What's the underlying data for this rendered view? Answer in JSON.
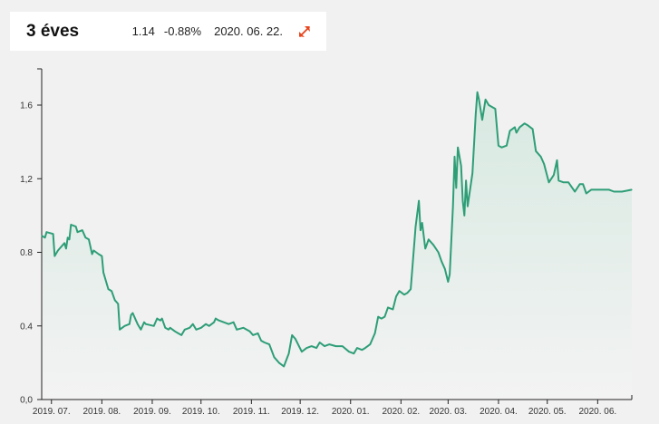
{
  "header": {
    "title": "3 éves",
    "value": "1.14",
    "change": "-0.88%",
    "date": "2020. 06. 22."
  },
  "colors": {
    "line": "#2e9e77",
    "area_top": "#d7e9e1",
    "area_bottom": "#f3f3f3",
    "icon": "#e8451e"
  },
  "icons": {
    "expand": "expand-arrows-icon"
  },
  "chart_data": {
    "type": "area",
    "title": "",
    "xlabel": "",
    "ylabel": "",
    "ylim": [
      0,
      1.6
    ],
    "yticks": [
      0.0,
      0.4,
      0.8,
      1.2,
      1.6
    ],
    "ytick_labels": [
      "0,0",
      "0.4",
      "0.8",
      "1,2",
      "1.6"
    ],
    "xlim": [
      "2019-06-25",
      "2020-06-22"
    ],
    "xticks": [
      "2019-07-01",
      "2019-08-01",
      "2019-09-01",
      "2019-10-01",
      "2019-11-01",
      "2019-12-01",
      "2020-01-01",
      "2020-02-01",
      "2020-03-01",
      "2020-04-01",
      "2020-05-01",
      "2020-06-01"
    ],
    "xtick_labels": [
      "2019. 07.",
      "2019. 08.",
      "2019. 09.",
      "2019. 10.",
      "2019. 11.",
      "2019. 12.",
      "2020. 01.",
      "2020. 02.",
      "2020. 03.",
      "2020. 04.",
      "2020. 05.",
      "2020. 06."
    ],
    "series": [
      {
        "points": [
          [
            "2019-06-25",
            0.89
          ],
          [
            "2019-06-27",
            0.88
          ],
          [
            "2019-06-28",
            0.91
          ],
          [
            "2019-07-02",
            0.9
          ],
          [
            "2019-07-03",
            0.78
          ],
          [
            "2019-07-05",
            0.81
          ],
          [
            "2019-07-09",
            0.85
          ],
          [
            "2019-07-10",
            0.82
          ],
          [
            "2019-07-11",
            0.88
          ],
          [
            "2019-07-12",
            0.87
          ],
          [
            "2019-07-13",
            0.95
          ],
          [
            "2019-07-16",
            0.94
          ],
          [
            "2019-07-17",
            0.91
          ],
          [
            "2019-07-20",
            0.92
          ],
          [
            "2019-07-22",
            0.88
          ],
          [
            "2019-07-24",
            0.87
          ],
          [
            "2019-07-26",
            0.79
          ],
          [
            "2019-07-27",
            0.81
          ],
          [
            "2019-07-30",
            0.79
          ],
          [
            "2019-08-01",
            0.78
          ],
          [
            "2019-08-02",
            0.69
          ],
          [
            "2019-08-05",
            0.6
          ],
          [
            "2019-08-07",
            0.59
          ],
          [
            "2019-08-09",
            0.54
          ],
          [
            "2019-08-11",
            0.52
          ],
          [
            "2019-08-12",
            0.38
          ],
          [
            "2019-08-15",
            0.4
          ],
          [
            "2019-08-18",
            0.41
          ],
          [
            "2019-08-19",
            0.46
          ],
          [
            "2019-08-20",
            0.47
          ],
          [
            "2019-08-22",
            0.43
          ],
          [
            "2019-08-23",
            0.41
          ],
          [
            "2019-08-25",
            0.38
          ],
          [
            "2019-08-27",
            0.42
          ],
          [
            "2019-08-28",
            0.41
          ],
          [
            "2019-09-02",
            0.4
          ],
          [
            "2019-09-04",
            0.44
          ],
          [
            "2019-09-06",
            0.43
          ],
          [
            "2019-09-07",
            0.44
          ],
          [
            "2019-09-09",
            0.39
          ],
          [
            "2019-09-11",
            0.38
          ],
          [
            "2019-09-12",
            0.39
          ],
          [
            "2019-09-15",
            0.37
          ],
          [
            "2019-09-17",
            0.36
          ],
          [
            "2019-09-19",
            0.35
          ],
          [
            "2019-09-21",
            0.38
          ],
          [
            "2019-09-24",
            0.39
          ],
          [
            "2019-09-26",
            0.41
          ],
          [
            "2019-09-28",
            0.38
          ],
          [
            "2019-10-01",
            0.39
          ],
          [
            "2019-10-04",
            0.41
          ],
          [
            "2019-10-06",
            0.4
          ],
          [
            "2019-10-09",
            0.42
          ],
          [
            "2019-10-10",
            0.44
          ],
          [
            "2019-10-12",
            0.43
          ],
          [
            "2019-10-15",
            0.42
          ],
          [
            "2019-10-18",
            0.41
          ],
          [
            "2019-10-21",
            0.42
          ],
          [
            "2019-10-23",
            0.38
          ],
          [
            "2019-10-27",
            0.39
          ],
          [
            "2019-10-29",
            0.38
          ],
          [
            "2019-10-31",
            0.37
          ],
          [
            "2019-11-02",
            0.35
          ],
          [
            "2019-11-05",
            0.36
          ],
          [
            "2019-11-07",
            0.32
          ],
          [
            "2019-11-09",
            0.31
          ],
          [
            "2019-11-12",
            0.3
          ],
          [
            "2019-11-15",
            0.23
          ],
          [
            "2019-11-18",
            0.2
          ],
          [
            "2019-11-21",
            0.18
          ],
          [
            "2019-11-24",
            0.25
          ],
          [
            "2019-11-26",
            0.35
          ],
          [
            "2019-11-28",
            0.33
          ],
          [
            "2019-12-02",
            0.26
          ],
          [
            "2019-12-05",
            0.28
          ],
          [
            "2019-12-08",
            0.29
          ],
          [
            "2019-12-11",
            0.28
          ],
          [
            "2019-12-13",
            0.31
          ],
          [
            "2019-12-16",
            0.29
          ],
          [
            "2019-12-19",
            0.3
          ],
          [
            "2019-12-23",
            0.29
          ],
          [
            "2019-12-27",
            0.29
          ],
          [
            "2019-12-31",
            0.26
          ],
          [
            "2020-01-03",
            0.25
          ],
          [
            "2020-01-05",
            0.28
          ],
          [
            "2020-01-08",
            0.27
          ],
          [
            "2020-01-10",
            0.28
          ],
          [
            "2020-01-13",
            0.3
          ],
          [
            "2020-01-16",
            0.36
          ],
          [
            "2020-01-18",
            0.45
          ],
          [
            "2020-01-20",
            0.44
          ],
          [
            "2020-01-22",
            0.45
          ],
          [
            "2020-01-24",
            0.5
          ],
          [
            "2020-01-27",
            0.49
          ],
          [
            "2020-01-29",
            0.56
          ],
          [
            "2020-01-31",
            0.59
          ],
          [
            "2020-02-03",
            0.57
          ],
          [
            "2020-02-05",
            0.58
          ],
          [
            "2020-02-07",
            0.6
          ],
          [
            "2020-02-10",
            0.94
          ],
          [
            "2020-02-12",
            1.08
          ],
          [
            "2020-02-13",
            0.92
          ],
          [
            "2020-02-14",
            0.96
          ],
          [
            "2020-02-16",
            0.82
          ],
          [
            "2020-02-18",
            0.87
          ],
          [
            "2020-02-21",
            0.84
          ],
          [
            "2020-02-24",
            0.8
          ],
          [
            "2020-02-26",
            0.75
          ],
          [
            "2020-02-28",
            0.71
          ],
          [
            "2020-03-01",
            0.64
          ],
          [
            "2020-03-02",
            0.68
          ],
          [
            "2020-03-04",
            1.05
          ],
          [
            "2020-03-05",
            1.32
          ],
          [
            "2020-03-06",
            1.15
          ],
          [
            "2020-03-07",
            1.37
          ],
          [
            "2020-03-09",
            1.27
          ],
          [
            "2020-03-10",
            1.08
          ],
          [
            "2020-03-11",
            1.0
          ],
          [
            "2020-03-12",
            1.19
          ],
          [
            "2020-03-13",
            1.05
          ],
          [
            "2020-03-16",
            1.23
          ],
          [
            "2020-03-18",
            1.55
          ],
          [
            "2020-03-19",
            1.67
          ],
          [
            "2020-03-20",
            1.63
          ],
          [
            "2020-03-22",
            1.52
          ],
          [
            "2020-03-24",
            1.63
          ],
          [
            "2020-03-26",
            1.6
          ],
          [
            "2020-03-30",
            1.58
          ],
          [
            "2020-04-01",
            1.38
          ],
          [
            "2020-04-03",
            1.37
          ],
          [
            "2020-04-06",
            1.38
          ],
          [
            "2020-04-08",
            1.46
          ],
          [
            "2020-04-11",
            1.48
          ],
          [
            "2020-04-12",
            1.45
          ],
          [
            "2020-04-14",
            1.48
          ],
          [
            "2020-04-17",
            1.5
          ],
          [
            "2020-04-19",
            1.49
          ],
          [
            "2020-04-22",
            1.47
          ],
          [
            "2020-04-24",
            1.35
          ],
          [
            "2020-04-27",
            1.32
          ],
          [
            "2020-04-29",
            1.28
          ],
          [
            "2020-05-02",
            1.18
          ],
          [
            "2020-05-05",
            1.22
          ],
          [
            "2020-05-07",
            1.3
          ],
          [
            "2020-05-08",
            1.19
          ],
          [
            "2020-05-11",
            1.18
          ],
          [
            "2020-05-14",
            1.18
          ],
          [
            "2020-05-18",
            1.13
          ],
          [
            "2020-05-21",
            1.17
          ],
          [
            "2020-05-23",
            1.17
          ],
          [
            "2020-05-25",
            1.12
          ],
          [
            "2020-05-28",
            1.14
          ],
          [
            "2020-06-01",
            1.14
          ],
          [
            "2020-06-05",
            1.14
          ],
          [
            "2020-06-08",
            1.14
          ],
          [
            "2020-06-11",
            1.13
          ],
          [
            "2020-06-16",
            1.13
          ],
          [
            "2020-06-22",
            1.14
          ]
        ]
      }
    ]
  }
}
